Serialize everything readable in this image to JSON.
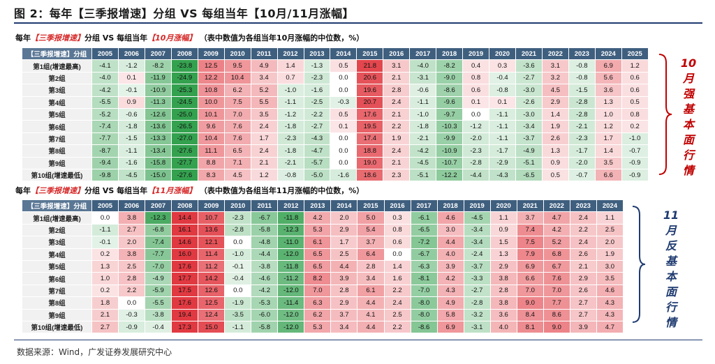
{
  "figure_title": "图 2：每年【三季报增速】分组 VS 每组当年【10月/11月涨幅】",
  "source": "数据来源：Wind，广发证券发展研究中心",
  "colors": {
    "positive": "#e0333b",
    "negative": "#2e9e4a",
    "header": "#3f5f7f",
    "side_red": "#c00000",
    "side_blue": "#1f3b70"
  },
  "chart_data": [
    {
      "type": "table",
      "title_prefix": "每年",
      "title_highlight1": "【三季报增速】",
      "title_mid": "分组 VS 每组当年",
      "title_highlight2": "【10月涨幅】",
      "note": "（表中数值为各组当年10月涨幅的中位数，%）",
      "corner_label": "【三季报增速】分组",
      "columns": [
        "2005",
        "2006",
        "2007",
        "2008",
        "2009",
        "2010",
        "2011",
        "2012",
        "2013",
        "2014",
        "2015",
        "2016",
        "2017",
        "2018",
        "2019",
        "2020",
        "2021",
        "2022",
        "2023",
        "2024",
        "2025"
      ],
      "rows": [
        {
          "label": "第1组(增速最高)",
          "values": [
            "-4.1",
            "-1.2",
            "-8.2",
            "-23.8",
            "12.5",
            "9.5",
            "4.9",
            "1.4",
            "-1.3",
            "0.5",
            "21.8",
            "3.1",
            "-4.0",
            "-8.2",
            "0.4",
            "0.3",
            "-3.6",
            "3.1",
            "-0.8",
            "6.9",
            "1.2"
          ]
        },
        {
          "label": "第2组",
          "values": [
            "-4.0",
            "0.1",
            "-11.9",
            "-24.9",
            "12.2",
            "10.4",
            "3.4",
            "0.7",
            "-2.3",
            "0.0",
            "20.6",
            "2.1",
            "-3.1",
            "-9.0",
            "0.8",
            "-0.4",
            "-2.7",
            "3.2",
            "-0.8",
            "5.6",
            "0.6"
          ]
        },
        {
          "label": "第3组",
          "values": [
            "-4.2",
            "-0.1",
            "-10.9",
            "-25.3",
            "10.8",
            "6.2",
            "5.2",
            "-1.0",
            "-1.6",
            "0.0",
            "19.6",
            "2.8",
            "-0.6",
            "-8.6",
            "0.6",
            "-0.8",
            "-3.0",
            "4.5",
            "-1.5",
            "3.6",
            "0.6"
          ]
        },
        {
          "label": "第4组",
          "values": [
            "-5.5",
            "0.9",
            "-11.3",
            "-24.5",
            "10.0",
            "7.5",
            "5.5",
            "-1.1",
            "-2.5",
            "-0.3",
            "20.7",
            "2.4",
            "-1.1",
            "-9.6",
            "0.1",
            "0.1",
            "-2.6",
            "2.9",
            "-2.8",
            "1.3",
            "0.5"
          ]
        },
        {
          "label": "第5组",
          "values": [
            "-5.2",
            "-0.6",
            "-12.6",
            "-25.0",
            "10.1",
            "7.0",
            "3.5",
            "-1.2",
            "-2.2",
            "0.5",
            "17.6",
            "2.1",
            "-1.0",
            "-9.7",
            "0.0",
            "-1.1",
            "-3.0",
            "1.4",
            "-2.8",
            "1.0",
            "0.8"
          ]
        },
        {
          "label": "第6组",
          "values": [
            "-7.4",
            "-1.8",
            "-13.6",
            "-26.5",
            "9.6",
            "7.6",
            "2.4",
            "-1.8",
            "-2.7",
            "0.1",
            "19.5",
            "2.2",
            "-1.8",
            "-10.3",
            "-1.2",
            "-1.1",
            "-3.4",
            "1.9",
            "-2.1",
            "1.2",
            "0.2"
          ]
        },
        {
          "label": "第7组",
          "values": [
            "-7.7",
            "-1.5",
            "-13.3",
            "-27.0",
            "10.4",
            "7.6",
            "1.7",
            "-2.3",
            "-4.3",
            "0.0",
            "17.4",
            "1.9",
            "-2.1",
            "-9.9",
            "-2.0",
            "-1.1",
            "-3.7",
            "2.6",
            "-2.3",
            "1.7",
            "-1.0"
          ]
        },
        {
          "label": "第8组",
          "values": [
            "-8.7",
            "-1.1",
            "-13.4",
            "-27.6",
            "11.1",
            "6.5",
            "2.4",
            "-1.8",
            "-4.7",
            "0.0",
            "18.8",
            "2.4",
            "-4.2",
            "-10.9",
            "-2.3",
            "-1.7",
            "-4.9",
            "1.3",
            "-1.7",
            "1.4",
            "-0.7"
          ]
        },
        {
          "label": "第9组",
          "values": [
            "-9.4",
            "-1.6",
            "-15.8",
            "-27.7",
            "8.8",
            "7.1",
            "2.1",
            "-2.1",
            "-5.7",
            "0.0",
            "19.0",
            "2.1",
            "-4.5",
            "-10.7",
            "-2.8",
            "-2.9",
            "-5.1",
            "0.9",
            "-2.0",
            "3.5",
            "-0.9"
          ]
        },
        {
          "label": "第10组(增速最低)",
          "values": [
            "-9.8",
            "-4.5",
            "-15.0",
            "-27.6",
            "8.3",
            "4.5",
            "1.2",
            "-0.8",
            "-5.0",
            "-1.6",
            "18.6",
            "2.3",
            "-5.1",
            "-12.2",
            "-4.4",
            "-4.3",
            "-6.5",
            "0.5",
            "-0.7",
            "6.6",
            "-0.9"
          ]
        }
      ],
      "side_label": "10月强基本面行情"
    },
    {
      "type": "table",
      "title_prefix": "每年",
      "title_highlight1": "【三季报增速】",
      "title_mid": "分组 VS 每组当年",
      "title_highlight2": "【11月涨幅】",
      "note": "（表中数值为各组当年11月涨幅的中位数，%）",
      "corner_label": "【三季报增速】分组",
      "columns": [
        "2005",
        "2006",
        "2007",
        "2008",
        "2009",
        "2010",
        "2011",
        "2012",
        "2013",
        "2014",
        "2015",
        "2016",
        "2017",
        "2018",
        "2019",
        "2020",
        "2021",
        "2022",
        "2023",
        "2024"
      ],
      "rows": [
        {
          "label": "第1组(增速最高)",
          "values": [
            "0.0",
            "3.8",
            "-12.3",
            "14.4",
            "10.7",
            "-2.3",
            "-6.7",
            "-11.8",
            "4.2",
            "2.0",
            "5.0",
            "0.3",
            "-6.1",
            "4.6",
            "-4.5",
            "1.1",
            "3.7",
            "4.7",
            "2.4",
            "1.1"
          ]
        },
        {
          "label": "第2组",
          "values": [
            "-1.1",
            "2.7",
            "-6.8",
            "16.1",
            "13.6",
            "-2.8",
            "-5.8",
            "-12.3",
            "5.3",
            "2.9",
            "5.4",
            "0.8",
            "-6.5",
            "3.0",
            "-3.4",
            "0.9",
            "7.4",
            "4.2",
            "2.2",
            "2.5"
          ]
        },
        {
          "label": "第3组",
          "values": [
            "-0.1",
            "2.0",
            "-7.4",
            "14.6",
            "12.1",
            "0.0",
            "-4.8",
            "-11.0",
            "6.1",
            "1.7",
            "3.7",
            "0.6",
            "-7.2",
            "4.4",
            "-3.4",
            "1.5",
            "7.5",
            "5.2",
            "2.4",
            "2.0"
          ]
        },
        {
          "label": "第4组",
          "values": [
            "0.2",
            "3.8",
            "-7.7",
            "16.0",
            "11.4",
            "-1.0",
            "-4.4",
            "-12.0",
            "6.5",
            "2.5",
            "6.4",
            "0.0",
            "-6.7",
            "4.0",
            "-2.4",
            "1.3",
            "7.9",
            "6.8",
            "2.6",
            "1.9"
          ]
        },
        {
          "label": "第5组",
          "values": [
            "1.3",
            "2.5",
            "-7.0",
            "17.6",
            "11.2",
            "-0.1",
            "-3.8",
            "-11.8",
            "6.5",
            "4.4",
            "2.8",
            "1.4",
            "-6.3",
            "3.9",
            "-3.7",
            "2.9",
            "6.9",
            "6.7",
            "2.1",
            "3.0"
          ]
        },
        {
          "label": "第6组",
          "values": [
            "1.0",
            "2.8",
            "-4.9",
            "17.7",
            "14.2",
            "-0.4",
            "-4.6",
            "-11.2",
            "8.2",
            "3.9",
            "3.4",
            "1.6",
            "-8.1",
            "4.2",
            "-3.3",
            "3.8",
            "6.6",
            "7.6",
            "2.9",
            "3.5"
          ]
        },
        {
          "label": "第7组",
          "values": [
            "0.2",
            "2.2",
            "-5.9",
            "17.5",
            "12.6",
            "0.0",
            "-4.2",
            "-12.0",
            "7.0",
            "2.8",
            "6.1",
            "2.2",
            "-7.0",
            "4.3",
            "-2.7",
            "2.8",
            "7.0",
            "7.0",
            "2.6",
            "4.6"
          ]
        },
        {
          "label": "第8组",
          "values": [
            "1.8",
            "0.0",
            "-5.5",
            "17.6",
            "12.5",
            "-1.9",
            "-5.3",
            "-11.4",
            "6.3",
            "2.9",
            "4.4",
            "2.4",
            "-8.0",
            "4.9",
            "-2.8",
            "3.8",
            "9.0",
            "7.7",
            "2.7",
            "4.3"
          ]
        },
        {
          "label": "第9组",
          "values": [
            "2.1",
            "-0.3",
            "-3.8",
            "19.4",
            "12.4",
            "-3.5",
            "-6.0",
            "-12.0",
            "6.2",
            "3.7",
            "4.1",
            "2.5",
            "-8.0",
            "5.8",
            "-3.2",
            "3.6",
            "8.4",
            "8.6",
            "2.7",
            "4.3"
          ]
        },
        {
          "label": "第10组(增速最低)",
          "values": [
            "2.7",
            "-0.9",
            "-0.4",
            "17.3",
            "15.0",
            "-1.1",
            "-5.8",
            "-12.0",
            "5.3",
            "3.4",
            "4.4",
            "2.2",
            "-8.6",
            "6.9",
            "-3.1",
            "4.0",
            "8.1",
            "9.0",
            "3.9",
            "4.7"
          ]
        }
      ],
      "side_label": "11月反基本面行情"
    }
  ]
}
